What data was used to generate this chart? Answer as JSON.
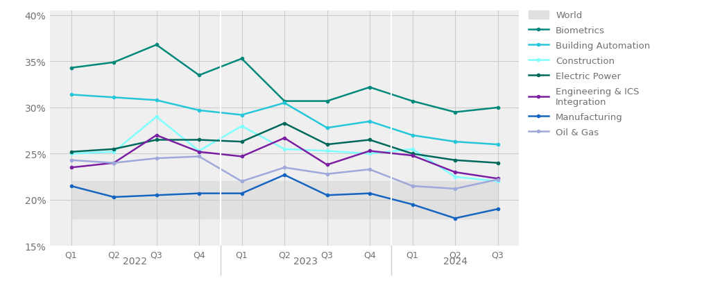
{
  "x_labels": [
    "Q1",
    "Q2",
    "Q3",
    "Q4",
    "Q1",
    "Q2",
    "Q3",
    "Q4",
    "Q1",
    "Q2",
    "Q3"
  ],
  "year_groups": [
    {
      "label": "2022",
      "positions": [
        0,
        1,
        2,
        3
      ]
    },
    {
      "label": "2023",
      "positions": [
        4,
        5,
        6,
        7
      ]
    },
    {
      "label": "2024",
      "positions": [
        8,
        9,
        10
      ]
    }
  ],
  "year_dividers": [
    3.5,
    7.5
  ],
  "x_positions": [
    0,
    1,
    2,
    3,
    4,
    5,
    6,
    7,
    8,
    9,
    10
  ],
  "series": [
    {
      "label": "Biometrics",
      "color": "#00897B",
      "marker": "o",
      "markersize": 3,
      "linewidth": 1.8,
      "values": [
        34.3,
        34.9,
        36.8,
        33.5,
        35.3,
        30.7,
        30.7,
        32.2,
        30.7,
        29.5,
        30.0
      ]
    },
    {
      "label": "Building Automation",
      "color": "#26C6DA",
      "marker": "o",
      "markersize": 3,
      "linewidth": 1.8,
      "values": [
        31.4,
        31.1,
        30.8,
        29.7,
        29.2,
        30.5,
        27.8,
        28.5,
        27.0,
        26.3,
        26.0
      ]
    },
    {
      "label": "Construction",
      "color": "#80FFFF",
      "marker": "o",
      "markersize": 3,
      "linewidth": 1.8,
      "values": [
        25.0,
        25.2,
        29.0,
        25.3,
        28.0,
        25.5,
        25.3,
        25.0,
        25.5,
        22.5,
        22.0
      ]
    },
    {
      "label": "Electric Power",
      "color": "#00695C",
      "marker": "o",
      "markersize": 3,
      "linewidth": 1.8,
      "values": [
        25.2,
        25.5,
        26.5,
        26.5,
        26.3,
        28.3,
        26.0,
        26.5,
        25.0,
        24.3,
        24.0
      ]
    },
    {
      "label": "Engineering & ICS\nIntegration",
      "color": "#7B1FA2",
      "marker": "o",
      "markersize": 3,
      "linewidth": 1.8,
      "values": [
        23.5,
        24.0,
        27.0,
        25.2,
        24.7,
        26.7,
        23.8,
        25.3,
        24.8,
        23.0,
        22.3
      ]
    },
    {
      "label": "Manufacturing",
      "color": "#1565C0",
      "marker": "o",
      "markersize": 3,
      "linewidth": 1.8,
      "values": [
        21.5,
        20.3,
        20.5,
        20.7,
        20.7,
        22.7,
        20.5,
        20.7,
        19.5,
        18.0,
        19.0
      ]
    },
    {
      "label": "Oil & Gas",
      "color": "#9FA8DA",
      "marker": "o",
      "markersize": 3,
      "linewidth": 1.8,
      "values": [
        24.3,
        24.0,
        24.5,
        24.7,
        22.0,
        23.5,
        22.8,
        23.3,
        21.5,
        21.2,
        22.2
      ]
    }
  ],
  "world_band": {
    "label": "World",
    "color": "#E0E0E0",
    "upper": [
      22.0,
      22.0,
      22.0,
      22.0,
      22.0,
      22.0,
      22.0,
      22.0,
      22.0,
      22.0,
      22.0
    ],
    "lower": [
      18.0,
      18.0,
      18.0,
      18.0,
      18.0,
      18.0,
      18.0,
      18.0,
      18.0,
      18.0,
      18.0
    ]
  },
  "ylim": [
    15.0,
    40.5
  ],
  "yticks": [
    15,
    20,
    25,
    30,
    35,
    40
  ],
  "ytick_labels": [
    "15%",
    "20%",
    "25%",
    "30%",
    "35%",
    "40%"
  ],
  "bg_color": "#FFFFFF",
  "plot_bg_color": "#EFEFEF",
  "grid_color": "#CCCCCC",
  "font_color": "#707070"
}
